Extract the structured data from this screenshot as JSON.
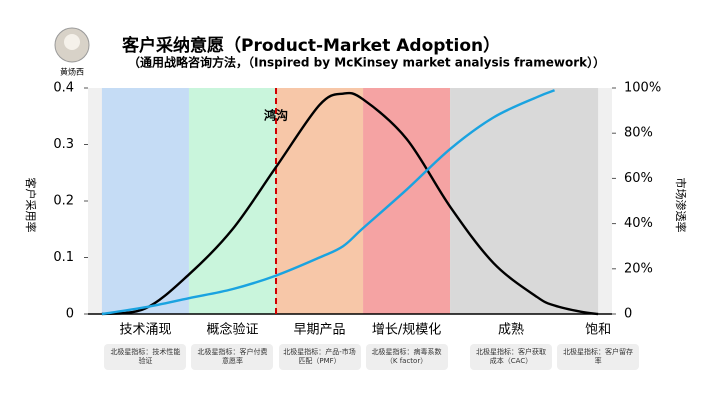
{
  "header": {
    "author": "黄炀西"
  },
  "chart_data": {
    "type": "line",
    "title": "客户采纳意愿（Product-Market Adoption）",
    "subtitle": "（通用战略咨询方法，（Inspired by McKinsey market analysis framework））",
    "ylabel": "客户采用率",
    "y2label": "市场渗透率",
    "x": [
      0,
      0.5,
      1,
      1.5,
      2,
      2.5,
      2.77,
      3,
      3.5,
      4,
      4.5,
      5,
      5.2,
      5.5,
      5.7
    ],
    "series": [
      {
        "color": "#000000",
        "values": [
          0,
          0.01,
          0.07,
          0.15,
          0.26,
          0.37,
          0.39,
          0.38,
          0.31,
          0.19,
          0.09,
          0.03,
          0.015,
          0.004,
          0
        ]
      },
      {
        "color": "#1aa3e0",
        "axis": "y2",
        "values": [
          0,
          3,
          7,
          11,
          17,
          25,
          30,
          38,
          55,
          73,
          87,
          96,
          99,
          null,
          null
        ]
      }
    ],
    "xlim": [
      -0.16,
      5.86
    ],
    "ylim": [
      0,
      0.4
    ],
    "yticks": [
      0,
      0.1,
      0.2,
      0.3,
      0.4
    ],
    "y2lim": [
      0,
      100
    ],
    "y2ticks": [
      0,
      {
        "value": 20,
        "label": "20%"
      },
      {
        "value": 40,
        "label": "40%"
      },
      {
        "value": 60,
        "label": "60%"
      },
      {
        "value": 80,
        "label": "80%"
      },
      {
        "value": 100,
        "label": "100%"
      }
    ],
    "xticks": [
      {
        "value": 0.5,
        "label": "技术涌现"
      },
      {
        "value": 1.5,
        "label": "概念验证"
      },
      {
        "value": 2.5,
        "label": "早期产品"
      },
      {
        "value": 3.5,
        "label": "增长/规模化"
      },
      {
        "value": 4.7,
        "label": "成熟"
      },
      {
        "value": 5.7,
        "label": "饱和"
      }
    ],
    "notes": [
      "北极星指标：技术性能验证",
      "北极星指标：客户付费意愿率",
      "北极星指标：产品-市场匹配（PMF）",
      "北极星指标：病毒系数（K factor）",
      "北极星指标：客户获取成本（CAC）",
      "北极星指标：客户留存率"
    ],
    "bands": [
      {
        "range": [
          0,
          1
        ],
        "color": "#c5dcf5"
      },
      {
        "range": [
          1,
          2
        ],
        "color": "#c9f5dc"
      },
      {
        "range": [
          2,
          3
        ],
        "color": "#f7c7a8"
      },
      {
        "range": [
          3,
          4
        ],
        "color": "#f5a3a3"
      },
      {
        "range": [
          4,
          5.7
        ],
        "color": "#d9d9d9"
      }
    ],
    "annotations": [
      {
        "x": 2,
        "label": "鸿沟",
        "color": "#d00000"
      }
    ]
  }
}
